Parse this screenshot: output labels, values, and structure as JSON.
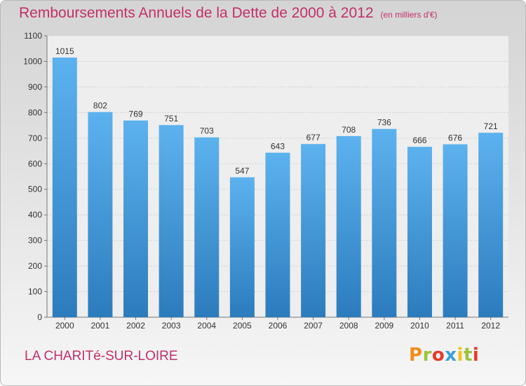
{
  "chart_data": {
    "type": "bar",
    "title": "Remboursements Annuels de la Dette de 2000 à 2012",
    "subtitle": "(en milliers d'€)",
    "categories": [
      "2000",
      "2001",
      "2002",
      "2003",
      "2004",
      "2005",
      "2006",
      "2007",
      "2008",
      "2009",
      "2010",
      "2011",
      "2012"
    ],
    "values": [
      1015,
      802,
      769,
      751,
      703,
      547,
      643,
      677,
      708,
      736,
      666,
      676,
      721
    ],
    "ylim": [
      0,
      1100
    ],
    "yticks": [
      0,
      100,
      200,
      300,
      400,
      500,
      600,
      700,
      800,
      900,
      1000,
      1100
    ],
    "grid": true,
    "bar_color": "#3d94d8",
    "title_color": "#c2306a"
  },
  "footer": {
    "city": "LA CHARITé-SUR-LOIRE",
    "logo": "Proxiti",
    "logo_colors": [
      "#f28c1e",
      "#9ac43a",
      "#e63a2a",
      "#3aa0d8",
      "#f2c21e",
      "#9ac43a",
      "#e63a2a"
    ]
  }
}
